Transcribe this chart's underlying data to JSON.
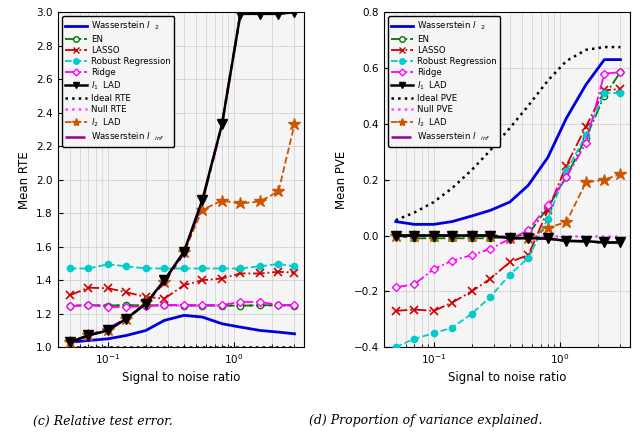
{
  "x": [
    0.05,
    0.07,
    0.1,
    0.14,
    0.2,
    0.28,
    0.4,
    0.56,
    0.8,
    1.12,
    1.6,
    2.24,
    3.0
  ],
  "rte_wasserstein_l2": [
    1.03,
    1.04,
    1.05,
    1.07,
    1.1,
    1.16,
    1.19,
    1.18,
    1.14,
    1.12,
    1.1,
    1.09,
    1.08
  ],
  "rte_en": [
    1.245,
    1.252,
    1.248,
    1.252,
    1.248,
    1.252,
    1.248,
    1.248,
    1.248,
    1.248,
    1.25,
    1.252,
    1.248
  ],
  "rte_lasso": [
    1.31,
    1.355,
    1.352,
    1.328,
    1.3,
    1.29,
    1.37,
    1.4,
    1.41,
    1.44,
    1.44,
    1.45,
    1.445
  ],
  "rte_robust": [
    1.47,
    1.47,
    1.495,
    1.483,
    1.47,
    1.47,
    1.47,
    1.47,
    1.47,
    1.47,
    1.483,
    1.497,
    1.483
  ],
  "rte_ridge": [
    1.245,
    1.252,
    1.24,
    1.24,
    1.245,
    1.252,
    1.252,
    1.252,
    1.252,
    1.27,
    1.27,
    1.252,
    1.252
  ],
  "rte_l1_lad": [
    1.03,
    1.07,
    1.1,
    1.17,
    1.26,
    1.4,
    1.57,
    1.88,
    2.33,
    2.99,
    2.99,
    2.99,
    3.0
  ],
  "rte_ideal": [
    1.0,
    1.0,
    1.0,
    1.0,
    1.0,
    1.0,
    1.0,
    1.0,
    1.0,
    1.0,
    1.0,
    1.0,
    1.0
  ],
  "rte_null": [
    1.25,
    1.25,
    1.25,
    1.25,
    1.25,
    1.25,
    1.25,
    1.25,
    1.25,
    1.25,
    1.25,
    1.25,
    1.25
  ],
  "rte_l2_lad": [
    1.03,
    1.07,
    1.1,
    1.17,
    1.27,
    1.39,
    1.57,
    1.82,
    1.875,
    1.858,
    1.87,
    1.93,
    2.33
  ],
  "rte_wasserstein_linf": [
    1.03,
    1.07,
    1.11,
    1.17,
    1.26,
    1.39,
    1.56,
    1.87,
    2.33,
    2.99,
    2.99,
    2.99,
    3.0
  ],
  "pve_wasserstein_l2": [
    0.05,
    0.04,
    0.04,
    0.05,
    0.07,
    0.09,
    0.12,
    0.18,
    0.28,
    0.42,
    0.54,
    0.63,
    0.63
  ],
  "pve_en": [
    0.0,
    -0.01,
    -0.01,
    -0.01,
    -0.01,
    -0.01,
    -0.005,
    0.005,
    0.1,
    0.21,
    0.35,
    0.5,
    0.585
  ],
  "pve_lasso": [
    -0.27,
    -0.265,
    -0.27,
    -0.24,
    -0.2,
    -0.155,
    -0.095,
    -0.07,
    0.09,
    0.25,
    0.39,
    0.52,
    0.525
  ],
  "pve_robust": [
    -0.4,
    -0.37,
    -0.35,
    -0.33,
    -0.28,
    -0.22,
    -0.14,
    -0.08,
    0.06,
    0.23,
    0.36,
    0.51,
    0.51
  ],
  "pve_ridge": [
    -0.185,
    -0.175,
    -0.12,
    -0.09,
    -0.07,
    -0.048,
    -0.012,
    0.018,
    0.11,
    0.21,
    0.33,
    0.58,
    0.585
  ],
  "pve_l1_lad": [
    0.0,
    0.0,
    0.0,
    0.0,
    0.0,
    0.0,
    -0.01,
    -0.01,
    -0.01,
    -0.02,
    -0.02,
    -0.025,
    -0.025
  ],
  "pve_ideal": [
    0.055,
    0.082,
    0.12,
    0.17,
    0.235,
    0.305,
    0.385,
    0.465,
    0.555,
    0.625,
    0.665,
    0.675,
    0.675
  ],
  "pve_null": [
    0.0,
    0.0,
    0.0,
    0.0,
    0.0,
    0.0,
    0.0,
    0.0,
    0.0,
    0.0,
    0.0,
    0.0,
    0.0
  ],
  "pve_l2_lad": [
    0.0,
    0.0,
    0.0,
    0.0,
    0.0,
    0.0,
    -0.008,
    -0.01,
    0.028,
    0.048,
    0.19,
    0.2,
    0.22
  ],
  "pve_wasserstein_linf": [
    0.0,
    0.0,
    0.0,
    0.0,
    0.0,
    0.0,
    -0.008,
    -0.01,
    -0.012,
    -0.018,
    -0.022,
    -0.025,
    -0.025
  ],
  "color_wasserstein_l2": "#0000dd",
  "color_en": "#007700",
  "color_lasso": "#cc0000",
  "color_robust": "#00cccc",
  "color_ridge": "#ff00ff",
  "color_l1_lad": "#000000",
  "color_ideal": "#000000",
  "color_null": "#ff44ff",
  "color_l2_lad": "#cc5500",
  "color_wasserstein_linf": "#990099",
  "ylabel_left": "Mean RTE",
  "ylabel_right": "Mean PVE",
  "xlabel": "Signal to noise ratio",
  "caption_left": "(c) Relative test error.",
  "caption_right": "(d) Proportion of variance explained.",
  "ylim_left": [
    1.0,
    3.0
  ],
  "ylim_right": [
    -0.4,
    0.8
  ],
  "yticks_left": [
    1.0,
    1.2,
    1.4,
    1.6,
    1.8,
    2.0,
    2.2,
    2.4,
    2.6,
    2.8,
    3.0
  ],
  "yticks_right": [
    -0.4,
    -0.2,
    0.0,
    0.2,
    0.4,
    0.6,
    0.8
  ]
}
